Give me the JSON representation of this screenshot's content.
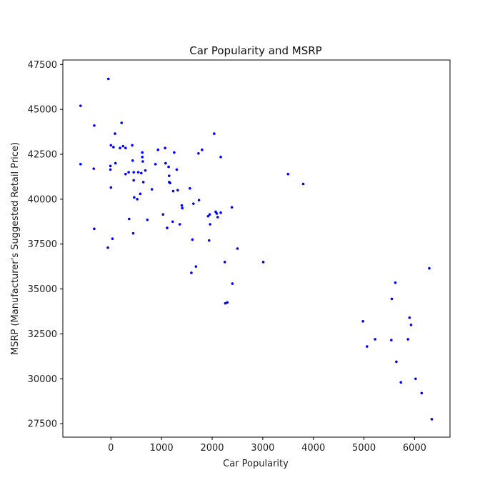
{
  "chart_data": {
    "type": "scatter",
    "title": "Car Popularity and MSRP",
    "xlabel": "Car Popularity",
    "ylabel": "MSRP (Manufacturer's Suggested Retail Price)",
    "xlim": [
      -950,
      6700
    ],
    "ylim": [
      26750,
      47750
    ],
    "xticks": [
      0,
      1000,
      2000,
      3000,
      4000,
      5000,
      6000
    ],
    "yticks": [
      27500,
      30000,
      32500,
      35000,
      37500,
      40000,
      42500,
      45000,
      47500
    ],
    "grid": false,
    "point_color": "#0000ff",
    "points": [
      {
        "x": -600,
        "y": 45200
      },
      {
        "x": -600,
        "y": 41950
      },
      {
        "x": -330,
        "y": 44100
      },
      {
        "x": -340,
        "y": 41700
      },
      {
        "x": -330,
        "y": 38350
      },
      {
        "x": -50,
        "y": 46700
      },
      {
        "x": -60,
        "y": 37300
      },
      {
        "x": -10,
        "y": 41850
      },
      {
        "x": -10,
        "y": 41650
      },
      {
        "x": 0,
        "y": 43000
      },
      {
        "x": 0,
        "y": 40650
      },
      {
        "x": 30,
        "y": 37800
      },
      {
        "x": 50,
        "y": 42900
      },
      {
        "x": 80,
        "y": 43650
      },
      {
        "x": 90,
        "y": 42000
      },
      {
        "x": 180,
        "y": 42850
      },
      {
        "x": 210,
        "y": 44250
      },
      {
        "x": 240,
        "y": 42950
      },
      {
        "x": 290,
        "y": 42850
      },
      {
        "x": 290,
        "y": 41400
      },
      {
        "x": 350,
        "y": 41500
      },
      {
        "x": 360,
        "y": 38900
      },
      {
        "x": 420,
        "y": 43000
      },
      {
        "x": 430,
        "y": 42150
      },
      {
        "x": 440,
        "y": 38100
      },
      {
        "x": 450,
        "y": 41500
      },
      {
        "x": 450,
        "y": 41050
      },
      {
        "x": 460,
        "y": 40100
      },
      {
        "x": 520,
        "y": 40000
      },
      {
        "x": 540,
        "y": 41500
      },
      {
        "x": 580,
        "y": 40300
      },
      {
        "x": 600,
        "y": 41450
      },
      {
        "x": 620,
        "y": 42600
      },
      {
        "x": 620,
        "y": 42350
      },
      {
        "x": 630,
        "y": 42100
      },
      {
        "x": 640,
        "y": 40950
      },
      {
        "x": 680,
        "y": 41600
      },
      {
        "x": 720,
        "y": 38850
      },
      {
        "x": 810,
        "y": 40550
      },
      {
        "x": 880,
        "y": 41950
      },
      {
        "x": 930,
        "y": 42750
      },
      {
        "x": 1030,
        "y": 39150
      },
      {
        "x": 1070,
        "y": 42850
      },
      {
        "x": 1080,
        "y": 42000
      },
      {
        "x": 1110,
        "y": 38400
      },
      {
        "x": 1140,
        "y": 41800
      },
      {
        "x": 1150,
        "y": 41300
      },
      {
        "x": 1150,
        "y": 40950
      },
      {
        "x": 1170,
        "y": 40900
      },
      {
        "x": 1220,
        "y": 38750
      },
      {
        "x": 1230,
        "y": 40450
      },
      {
        "x": 1250,
        "y": 42600
      },
      {
        "x": 1300,
        "y": 41650
      },
      {
        "x": 1320,
        "y": 40500
      },
      {
        "x": 1360,
        "y": 38600
      },
      {
        "x": 1400,
        "y": 39650
      },
      {
        "x": 1410,
        "y": 39500
      },
      {
        "x": 1560,
        "y": 40600
      },
      {
        "x": 1590,
        "y": 35900
      },
      {
        "x": 1610,
        "y": 37750
      },
      {
        "x": 1630,
        "y": 39750
      },
      {
        "x": 1680,
        "y": 36250
      },
      {
        "x": 1730,
        "y": 42550
      },
      {
        "x": 1740,
        "y": 39950
      },
      {
        "x": 1800,
        "y": 42750
      },
      {
        "x": 1920,
        "y": 39050
      },
      {
        "x": 1940,
        "y": 37700
      },
      {
        "x": 1950,
        "y": 39150
      },
      {
        "x": 1960,
        "y": 38600
      },
      {
        "x": 2040,
        "y": 43650
      },
      {
        "x": 2070,
        "y": 39300
      },
      {
        "x": 2090,
        "y": 39200
      },
      {
        "x": 2110,
        "y": 39000
      },
      {
        "x": 2170,
        "y": 42350
      },
      {
        "x": 2170,
        "y": 39250
      },
      {
        "x": 2250,
        "y": 36500
      },
      {
        "x": 2260,
        "y": 34200
      },
      {
        "x": 2300,
        "y": 34250
      },
      {
        "x": 2390,
        "y": 39550
      },
      {
        "x": 2400,
        "y": 35300
      },
      {
        "x": 2500,
        "y": 37250
      },
      {
        "x": 3010,
        "y": 36500
      },
      {
        "x": 3500,
        "y": 41400
      },
      {
        "x": 3800,
        "y": 40850
      },
      {
        "x": 4980,
        "y": 33200
      },
      {
        "x": 5060,
        "y": 31800
      },
      {
        "x": 5220,
        "y": 32200
      },
      {
        "x": 5540,
        "y": 32150
      },
      {
        "x": 5550,
        "y": 34450
      },
      {
        "x": 5620,
        "y": 35350
      },
      {
        "x": 5640,
        "y": 30950
      },
      {
        "x": 5730,
        "y": 29800
      },
      {
        "x": 5870,
        "y": 32200
      },
      {
        "x": 5900,
        "y": 33400
      },
      {
        "x": 5930,
        "y": 33000
      },
      {
        "x": 6020,
        "y": 30000
      },
      {
        "x": 6140,
        "y": 29200
      },
      {
        "x": 6290,
        "y": 36150
      },
      {
        "x": 6340,
        "y": 27750
      }
    ]
  }
}
